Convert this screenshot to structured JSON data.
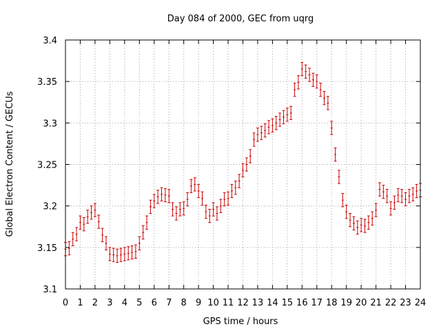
{
  "chart_data": {
    "type": "scatter",
    "title": "Day 084 of 2000, GEC from uqrg",
    "xlabel": "GPS time / hours",
    "ylabel": "Global Electron Content / GECUs",
    "xlim": [
      0,
      24
    ],
    "ylim": [
      3.1,
      3.4
    ],
    "x_ticks": [
      "0",
      "1",
      "2",
      "3",
      "4",
      "5",
      "6",
      "7",
      "8",
      "9",
      "10",
      "11",
      "12",
      "13",
      "14",
      "15",
      "16",
      "17",
      "18",
      "19",
      "20",
      "21",
      "22",
      "23",
      "24"
    ],
    "y_ticks": [
      "3.1",
      "3.15",
      "3.2",
      "3.25",
      "3.3",
      "3.35",
      "3.4"
    ],
    "grid": true,
    "legend": "none",
    "marker": "error bars",
    "color": "#cc0000",
    "error": 0.008,
    "x": [
      0,
      0.25,
      0.5,
      0.75,
      1,
      1.25,
      1.5,
      1.75,
      2,
      2.25,
      2.5,
      2.75,
      3,
      3.25,
      3.5,
      3.75,
      4,
      4.25,
      4.5,
      4.75,
      5,
      5.25,
      5.5,
      5.75,
      6,
      6.25,
      6.5,
      6.75,
      7,
      7.25,
      7.5,
      7.75,
      8,
      8.25,
      8.5,
      8.75,
      9,
      9.25,
      9.5,
      9.75,
      10,
      10.25,
      10.5,
      10.75,
      11,
      11.25,
      11.5,
      11.75,
      12,
      12.25,
      12.5,
      12.75,
      13,
      13.25,
      13.5,
      13.75,
      14,
      14.25,
      14.5,
      14.75,
      15,
      15.25,
      15.5,
      15.75,
      16,
      16.25,
      16.5,
      16.75,
      17,
      17.25,
      17.5,
      17.75,
      18,
      18.25,
      18.5,
      18.75,
      19,
      19.25,
      19.5,
      19.75,
      20,
      20.25,
      20.5,
      20.75,
      21,
      21.25,
      21.5,
      21.75,
      22,
      22.25,
      22.5,
      22.75,
      23,
      23.25,
      23.5,
      23.75,
      24
    ],
    "y": [
      3.148,
      3.149,
      3.16,
      3.166,
      3.18,
      3.178,
      3.187,
      3.192,
      3.195,
      3.181,
      3.165,
      3.155,
      3.142,
      3.141,
      3.14,
      3.141,
      3.142,
      3.143,
      3.144,
      3.145,
      3.155,
      3.168,
      3.18,
      3.199,
      3.206,
      3.211,
      3.214,
      3.213,
      3.212,
      3.196,
      3.191,
      3.196,
      3.197,
      3.208,
      3.224,
      3.226,
      3.218,
      3.209,
      3.193,
      3.188,
      3.196,
      3.191,
      3.2,
      3.208,
      3.209,
      3.218,
      3.222,
      3.23,
      3.243,
      3.25,
      3.26,
      3.28,
      3.286,
      3.288,
      3.291,
      3.295,
      3.297,
      3.3,
      3.304,
      3.307,
      3.31,
      3.312,
      3.34,
      3.349,
      3.365,
      3.362,
      3.358,
      3.352,
      3.35,
      3.34,
      3.33,
      3.324,
      3.294,
      3.262,
      3.235,
      3.207,
      3.193,
      3.183,
      3.179,
      3.174,
      3.177,
      3.176,
      3.18,
      3.185,
      3.195,
      3.22,
      3.217,
      3.212,
      3.197,
      3.204,
      3.213,
      3.212,
      3.208,
      3.212,
      3.214,
      3.218,
      3.219
    ]
  }
}
